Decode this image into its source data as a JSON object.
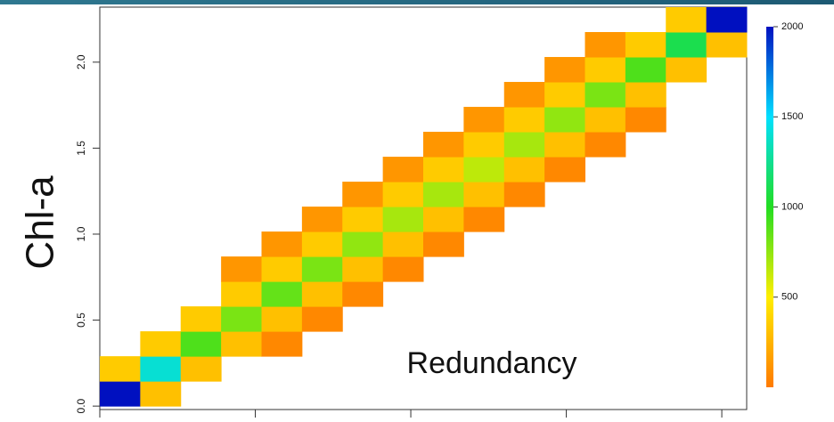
{
  "chart_data": {
    "type": "heatmap",
    "y_label": "Chl-a",
    "annotation": "Redundancy",
    "x_bins": [
      0,
      0.13,
      0.26,
      0.39,
      0.52,
      0.65,
      0.78,
      0.91,
      1.04,
      1.17,
      1.3,
      1.43,
      1.56,
      1.69,
      1.82,
      1.95,
      2.08
    ],
    "y_bins": [
      0,
      0.145,
      0.29,
      0.435,
      0.58,
      0.725,
      0.87,
      1.015,
      1.16,
      1.305,
      1.45,
      1.595,
      1.74,
      1.885,
      2.03,
      2.175,
      2.32
    ],
    "values": [
      [
        2000,
        300,
        null,
        null,
        null,
        null,
        null,
        null,
        null,
        null,
        null,
        null,
        null,
        null,
        null,
        null
      ],
      [
        350,
        1400,
        300,
        null,
        null,
        null,
        null,
        null,
        null,
        null,
        null,
        null,
        null,
        null,
        null,
        null
      ],
      [
        null,
        350,
        900,
        300,
        60,
        null,
        null,
        null,
        null,
        null,
        null,
        null,
        null,
        null,
        null,
        null
      ],
      [
        null,
        null,
        350,
        800,
        300,
        60,
        null,
        null,
        null,
        null,
        null,
        null,
        null,
        null,
        null,
        null
      ],
      [
        null,
        null,
        null,
        350,
        850,
        300,
        60,
        null,
        null,
        null,
        null,
        null,
        null,
        null,
        null,
        null
      ],
      [
        null,
        null,
        null,
        120,
        350,
        800,
        300,
        60,
        null,
        null,
        null,
        null,
        null,
        null,
        null,
        null
      ],
      [
        null,
        null,
        null,
        null,
        120,
        350,
        750,
        300,
        60,
        null,
        null,
        null,
        null,
        null,
        null,
        null
      ],
      [
        null,
        null,
        null,
        null,
        null,
        120,
        350,
        700,
        300,
        60,
        null,
        null,
        null,
        null,
        null,
        null
      ],
      [
        null,
        null,
        null,
        null,
        null,
        null,
        120,
        350,
        700,
        300,
        60,
        null,
        null,
        null,
        null,
        null
      ],
      [
        null,
        null,
        null,
        null,
        null,
        null,
        null,
        120,
        350,
        650,
        300,
        60,
        null,
        null,
        null,
        null
      ],
      [
        null,
        null,
        null,
        null,
        null,
        null,
        null,
        null,
        120,
        350,
        700,
        300,
        60,
        null,
        null,
        null
      ],
      [
        null,
        null,
        null,
        null,
        null,
        null,
        null,
        null,
        null,
        120,
        350,
        750,
        300,
        60,
        null,
        null
      ],
      [
        null,
        null,
        null,
        null,
        null,
        null,
        null,
        null,
        null,
        null,
        120,
        350,
        800,
        300,
        null,
        null
      ],
      [
        null,
        null,
        null,
        null,
        null,
        null,
        null,
        null,
        null,
        null,
        null,
        120,
        350,
        900,
        300,
        null
      ],
      [
        null,
        null,
        null,
        null,
        null,
        null,
        null,
        null,
        null,
        null,
        null,
        null,
        120,
        350,
        1100,
        300
      ],
      [
        null,
        null,
        null,
        null,
        null,
        null,
        null,
        null,
        null,
        null,
        null,
        null,
        null,
        null,
        350,
        2000
      ]
    ],
    "xlim": [
      0,
      2.08
    ],
    "xticks": [
      0,
      0.5,
      1,
      1.5,
      2
    ],
    "ylim": [
      -0.02,
      2.32
    ],
    "yticks": [
      {
        "value": 0,
        "label": "0.0"
      },
      0.5,
      {
        "value": 1,
        "label": "1.0"
      },
      1.5,
      {
        "value": 2,
        "label": "2.0"
      }
    ],
    "clim": [
      0,
      2000
    ],
    "colorbar_ticks": [
      500,
      1000,
      1500,
      2000
    ],
    "colorscale": [
      "#ff7a00",
      "#ffee00",
      "#22dd22",
      "#00e0ff",
      "#0010c0"
    ]
  }
}
